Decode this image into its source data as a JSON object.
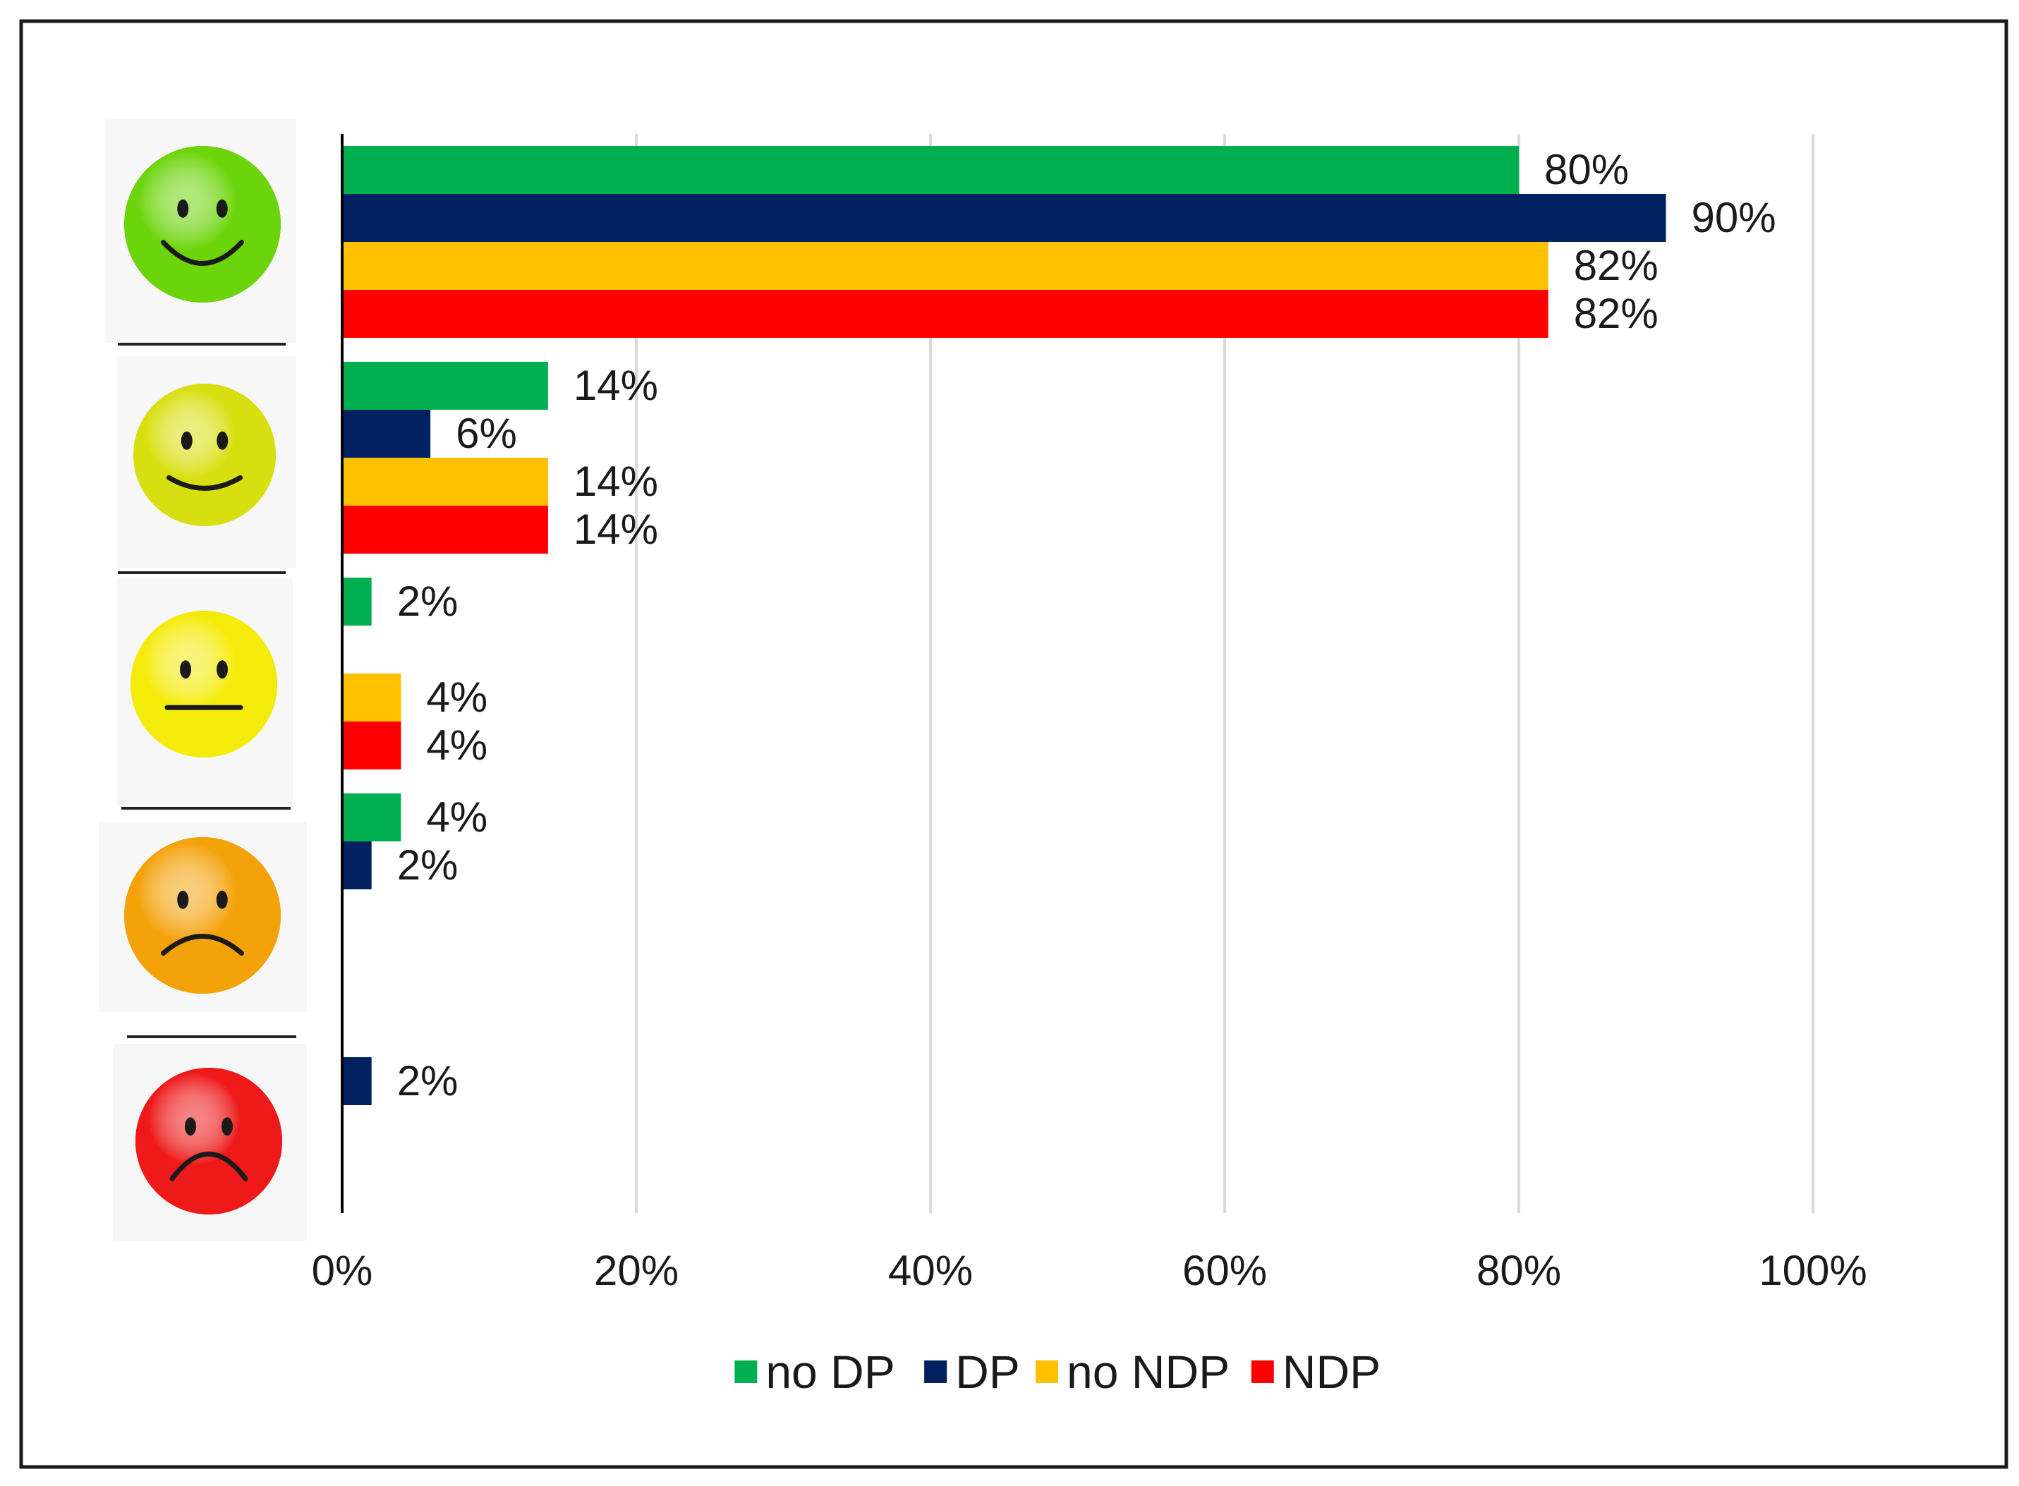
{
  "chart_data": {
    "type": "bar",
    "orientation": "horizontal",
    "categories": [
      "very satisfied",
      "satisfied",
      "neutral",
      "dissatisfied",
      "very dissatisfied"
    ],
    "category_icons": [
      "very-happy-face-icon",
      "happy-face-icon",
      "neutral-face-icon",
      "sad-face-icon",
      "very-sad-face-icon"
    ],
    "series": [
      {
        "name": "no DP",
        "color": "#00B050",
        "values": [
          80,
          14,
          2,
          4,
          0
        ]
      },
      {
        "name": "DP",
        "color": "#002060",
        "values": [
          90,
          6,
          0,
          2,
          2
        ]
      },
      {
        "name": "no NDP",
        "color": "#FFC000",
        "values": [
          82,
          14,
          4,
          0,
          0
        ]
      },
      {
        "name": "NDP",
        "color": "#FF0000",
        "values": [
          82,
          14,
          4,
          0,
          0
        ]
      }
    ],
    "data_label_suffix": "%",
    "xlim": [
      0,
      100
    ],
    "xticks": [
      0,
      20,
      40,
      60,
      80,
      100
    ],
    "xtick_labels": [
      "0%",
      "20%",
      "40%",
      "60%",
      "80%",
      "100%"
    ],
    "grid": true,
    "legend_position": "bottom",
    "icon_colors": {
      "very_happy": "#6CD40A",
      "happy": "#D8DF10",
      "neutral": "#F5EB0A",
      "sad": "#F4A20A",
      "very_sad": "#EE1A1A"
    }
  }
}
